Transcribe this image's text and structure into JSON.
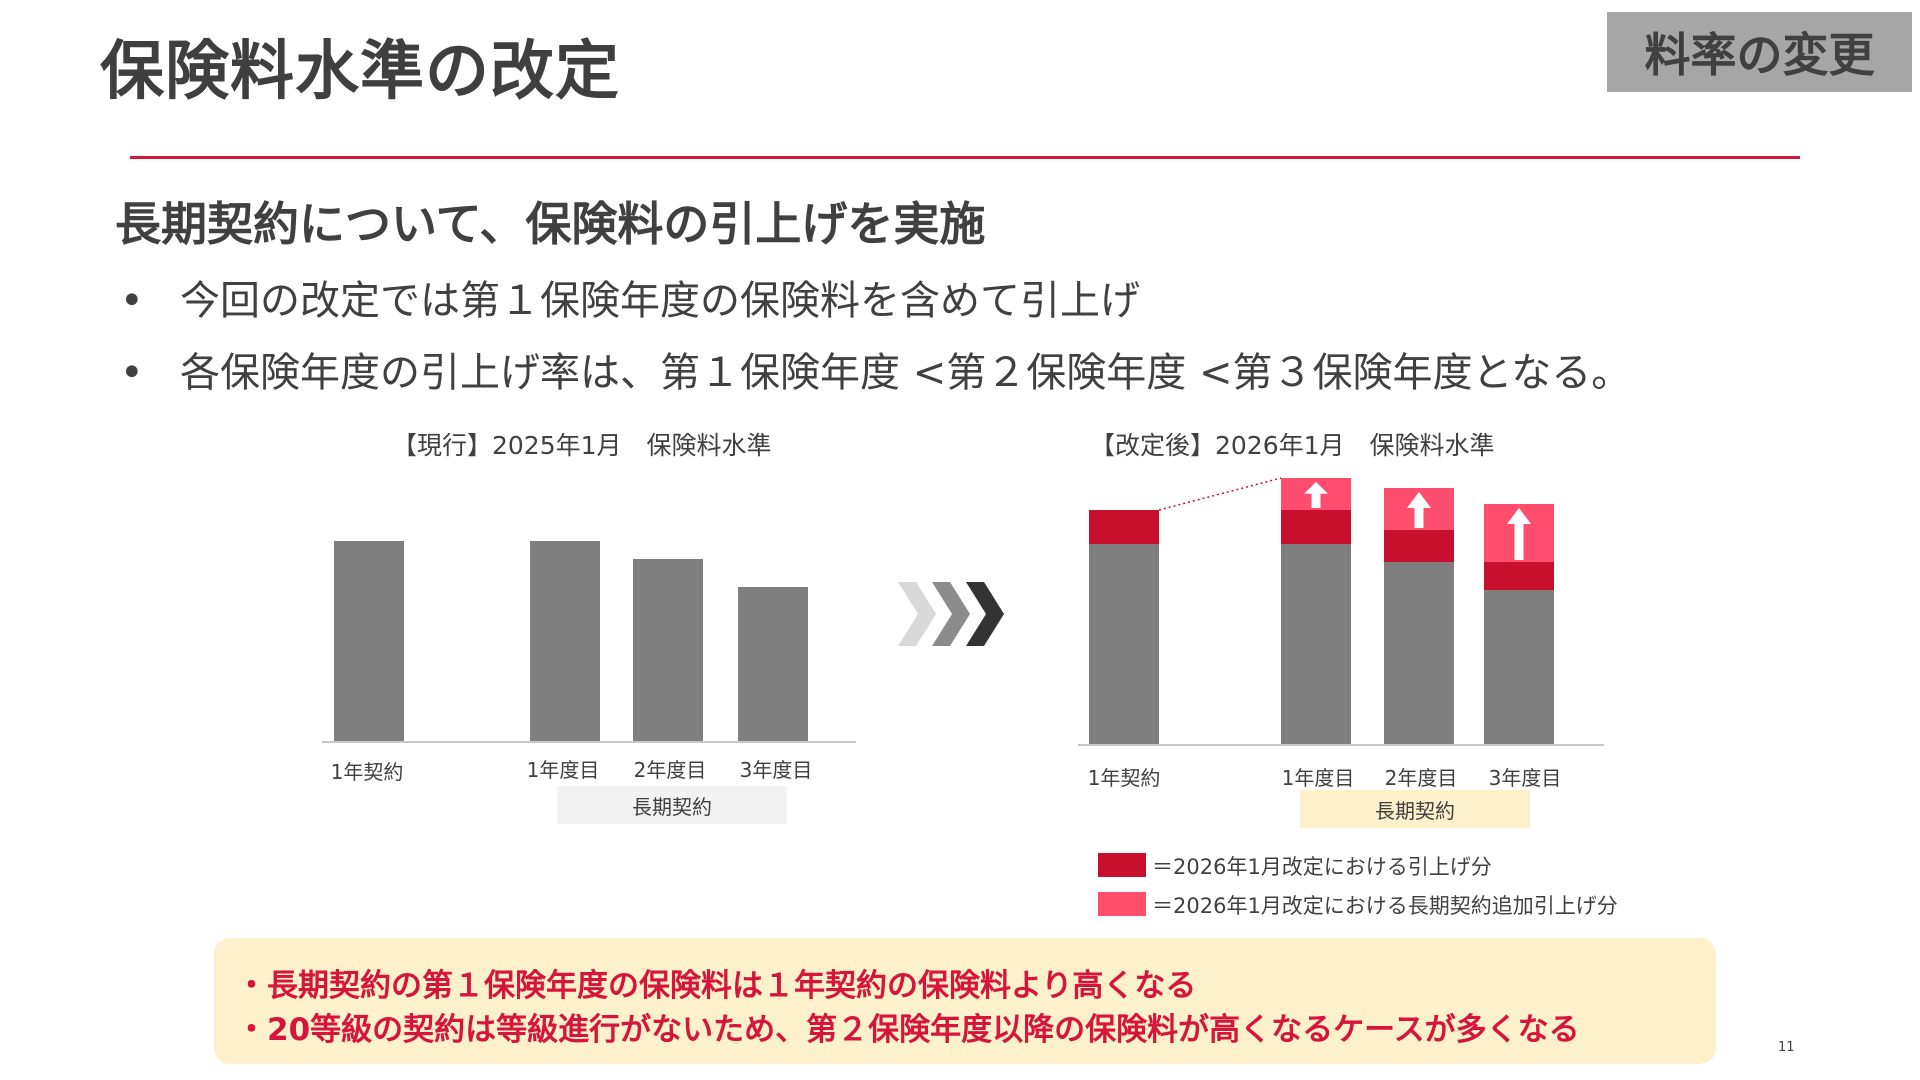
{
  "header": {
    "title": "保険料水準の改定",
    "tag": "料率の変更"
  },
  "subtitle": "長期契約について、保険料の引上げを実施",
  "bullets": [
    "今回の改定では第１保険年度の保険料を含めて引上げ",
    "各保険年度の引上げ率は、第１保険年度 <第２保険年度 <第３保険年度となる。"
  ],
  "bullet_marker": "•",
  "colors": {
    "accent": "#d6153a",
    "bar_gray": "#7f7f7f",
    "increase_red": "#c8102e",
    "increase_pink": "#ff4d6d",
    "group_box_left": "#f2f2f2",
    "group_box_right": "#fdf1cc",
    "callout_bg": "#fdf1cc"
  },
  "chart_data": [
    {
      "type": "bar",
      "title": "【現行】2025年1月　保険料水準",
      "categories": [
        "1年契約",
        "1年度目",
        "2年度目",
        "3年度目"
      ],
      "group_label": "長期契約",
      "series": [
        {
          "values": [
            100,
            100,
            91,
            77
          ]
        }
      ]
    },
    {
      "type": "bar",
      "title": "【改定後】2026年1月　保険料水準",
      "categories": [
        "1年契約",
        "1年度目",
        "2年度目",
        "3年度目"
      ],
      "group_label": "長期契約",
      "stacked": true,
      "series": [
        {
          "values": [
            100,
            100,
            91,
            77
          ]
        },
        {
          "values": [
            17,
            17,
            16,
            14
          ]
        },
        {
          "values": [
            0,
            16,
            21,
            29
          ]
        }
      ]
    }
  ],
  "arrow_icon": "chevron-arrows-icon",
  "up_arrow_icon": "up-arrow-icon",
  "legend": [
    {
      "label": "＝2026年1月改定における引上げ分",
      "color": "#c8102e"
    },
    {
      "label": "＝2026年1月改定における長期契約追加引上げ分",
      "color": "#ff4d6d"
    }
  ],
  "callout": [
    "・長期契約の第１保険年度の保険料は１年契約の保険料より高くなる",
    "・20等級の契約は等級進行がないため、第２保険年度以降の保険料が高くなるケースが多くなる"
  ],
  "page_number": "11"
}
